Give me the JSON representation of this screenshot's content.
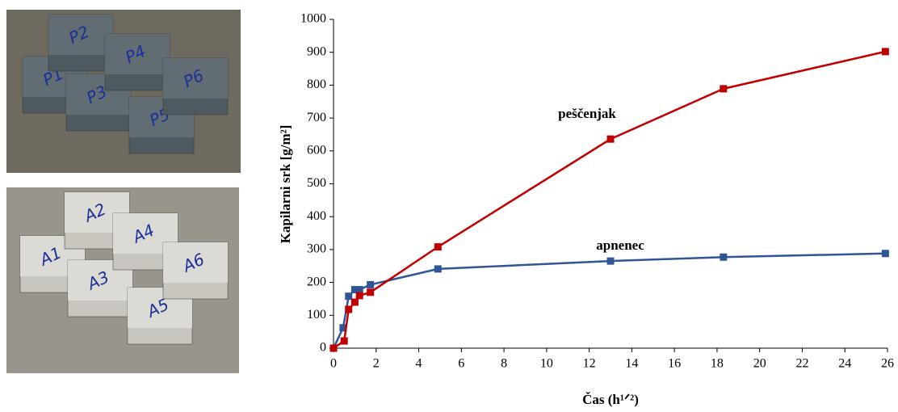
{
  "chart_data": {
    "type": "line",
    "x_label": "Čas (h¹ᐟ²)",
    "y_label": "Kapilarni srk [g/m²]",
    "xlim": [
      0,
      26
    ],
    "xticks": [
      0,
      2,
      4,
      6,
      8,
      10,
      12,
      14,
      16,
      18,
      20,
      22,
      24,
      26
    ],
    "ylim": [
      0,
      1000
    ],
    "yticks": [
      0,
      100,
      200,
      300,
      400,
      500,
      600,
      700,
      800,
      900,
      1000
    ],
    "grid": false,
    "series": [
      {
        "name": "apnenec",
        "color": "#2f5597",
        "x": [
          0,
          0.45,
          0.71,
          1.0,
          1.22,
          1.73,
          4.9,
          13.0,
          18.3,
          25.9
        ],
        "values": [
          0,
          62,
          158,
          178,
          178,
          193,
          241,
          265,
          277,
          288
        ]
      },
      {
        "name": "peščenjak",
        "color": "#c00000",
        "x": [
          0,
          0.5,
          0.71,
          1.0,
          1.22,
          1.73,
          4.9,
          13.0,
          18.3,
          25.9
        ],
        "values": [
          0,
          22,
          118,
          140,
          160,
          170,
          308,
          636,
          789,
          902
        ]
      }
    ]
  },
  "photos": [
    {
      "labels": [
        "P1",
        "P2",
        "P3",
        "P4",
        "P5",
        "P6"
      ]
    },
    {
      "labels": [
        "A1",
        "A2",
        "A3",
        "A4",
        "A5",
        "A6"
      ]
    }
  ]
}
